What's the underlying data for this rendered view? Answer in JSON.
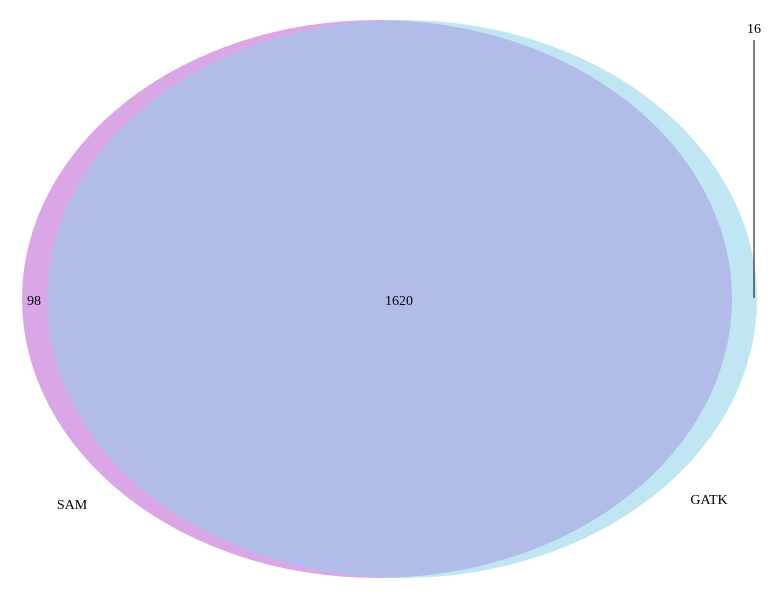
{
  "venn": {
    "sets": [
      {
        "name": "SAM",
        "color": "#dba6e6"
      },
      {
        "name": "GATK",
        "color": "#bfe6f2"
      }
    ],
    "overlap_color": "#b1bce9",
    "regions": {
      "sam_only": "98",
      "intersection": "1620",
      "gatk_only": "16"
    }
  }
}
